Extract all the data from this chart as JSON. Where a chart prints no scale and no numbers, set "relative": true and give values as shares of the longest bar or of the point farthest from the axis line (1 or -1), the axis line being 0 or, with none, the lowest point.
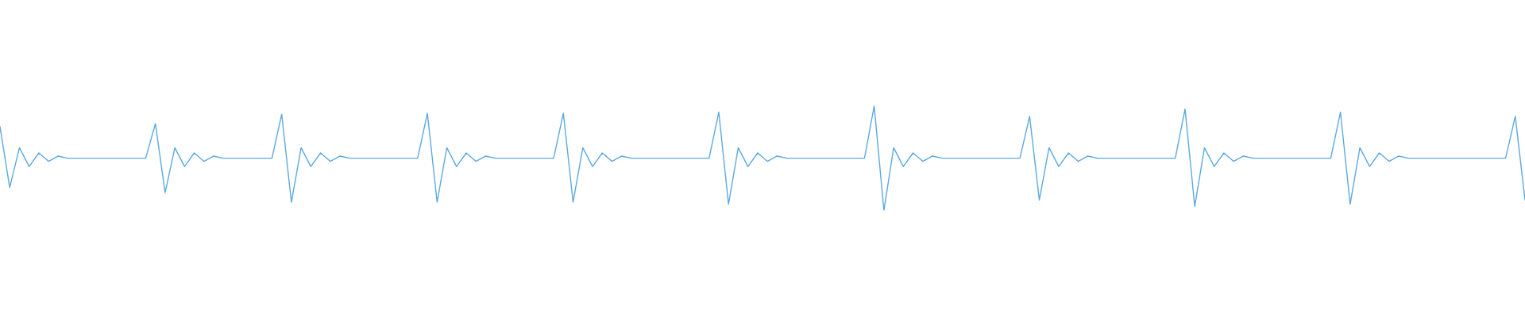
{
  "chart_data": {
    "type": "line",
    "relative": true,
    "categories": [
      null,
      null,
      null,
      null,
      null,
      null,
      null,
      null,
      null,
      null,
      null,
      null,
      null,
      null,
      null,
      null,
      null,
      null,
      null,
      null,
      null,
      null,
      null,
      null,
      null,
      null,
      null,
      null,
      null,
      null,
      null,
      null,
      null,
      null,
      null,
      null,
      null,
      null,
      null,
      null,
      null,
      null,
      null,
      null,
      null,
      null,
      null,
      null,
      null,
      null,
      null,
      null,
      null,
      null,
      null,
      null,
      null,
      null,
      null,
      null,
      null,
      null,
      null,
      null,
      null,
      null,
      null,
      null,
      null,
      null,
      null,
      null,
      null,
      null,
      null,
      null,
      null,
      null,
      null,
      null,
      null,
      null,
      null,
      null,
      null,
      null,
      null,
      null,
      null,
      null,
      null,
      null,
      null,
      null,
      null,
      null,
      null,
      null,
      null,
      null,
      null,
      null,
      null,
      null,
      null,
      null,
      null,
      null,
      null,
      null,
      null,
      null,
      null,
      null,
      null,
      null,
      null,
      null,
      null,
      null,
      null,
      null,
      null,
      null,
      null,
      null,
      null,
      null,
      null,
      null,
      null,
      null,
      null,
      null,
      null,
      null,
      null,
      null,
      null,
      null,
      null,
      null,
      null,
      null,
      null,
      null,
      null,
      null,
      null,
      null,
      null,
      null,
      null,
      null,
      null,
      null,
      null,
      null
    ],
    "series": [
      {
        "color": "#5aa9e0",
        "values": [
          0.8,
          0.22,
          0.6,
          0.42,
          0.55,
          0.47,
          0.52,
          0.5,
          0.5,
          0.5,
          0.5,
          0.5,
          0.5,
          0.5,
          0.5,
          0.5,
          0.83,
          0.17,
          0.6,
          0.42,
          0.55,
          0.47,
          0.52,
          0.5,
          0.5,
          0.5,
          0.5,
          0.5,
          0.5,
          0.92,
          0.08,
          0.6,
          0.42,
          0.55,
          0.47,
          0.52,
          0.5,
          0.5,
          0.5,
          0.5,
          0.5,
          0.5,
          0.5,
          0.5,
          0.93,
          0.08,
          0.6,
          0.42,
          0.55,
          0.47,
          0.52,
          0.5,
          0.5,
          0.5,
          0.5,
          0.5,
          0.5,
          0.5,
          0.93,
          0.08,
          0.6,
          0.42,
          0.55,
          0.47,
          0.52,
          0.5,
          0.5,
          0.5,
          0.5,
          0.5,
          0.5,
          0.5,
          0.5,
          0.5,
          0.94,
          0.06,
          0.6,
          0.42,
          0.55,
          0.47,
          0.52,
          0.5,
          0.5,
          0.5,
          0.5,
          0.5,
          0.5,
          0.5,
          0.5,
          0.5,
          1,
          0,
          0.6,
          0.42,
          0.55,
          0.47,
          0.52,
          0.5,
          0.5,
          0.5,
          0.5,
          0.5,
          0.5,
          0.5,
          0.5,
          0.5,
          0.9,
          0.1,
          0.6,
          0.42,
          0.55,
          0.47,
          0.52,
          0.5,
          0.5,
          0.5,
          0.5,
          0.5,
          0.5,
          0.5,
          0.5,
          0.5,
          0.97,
          0.04,
          0.6,
          0.42,
          0.55,
          0.47,
          0.52,
          0.5,
          0.5,
          0.5,
          0.5,
          0.5,
          0.5,
          0.5,
          0.5,
          0.5,
          0.94,
          0.06,
          0.6,
          0.42,
          0.55,
          0.47,
          0.52,
          0.5,
          0.5,
          0.5,
          0.5,
          0.5,
          0.5,
          0.5,
          0.5,
          0.5,
          0.5,
          0.5,
          0.9,
          0.1
        ]
      }
    ]
  }
}
